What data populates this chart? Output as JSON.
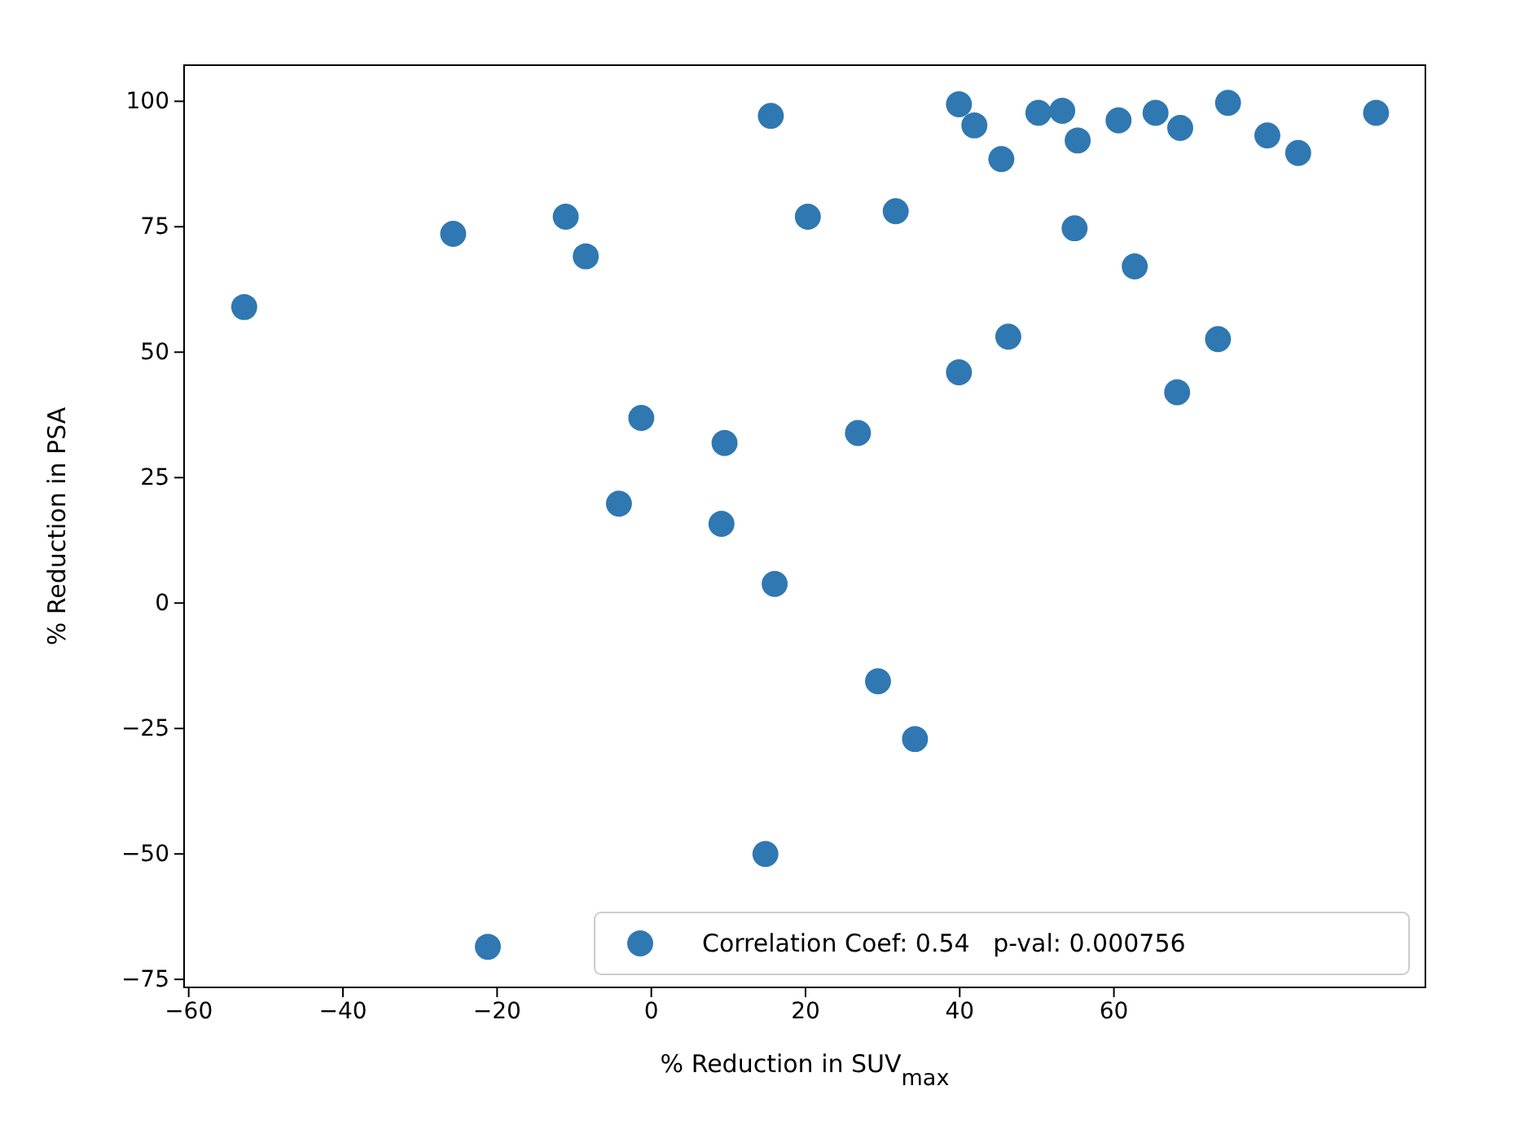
{
  "chart_data": {
    "type": "scatter",
    "xlabel": "% Reduction in SUV$_{max}$",
    "ylabel": "% Reduction in PSA",
    "xlim": [
      -60.6,
      100.4
    ],
    "ylim": [
      -76.6,
      107.2
    ],
    "xticks": [
      -60,
      -40,
      -20,
      0,
      20,
      40,
      60
    ],
    "yticks": [
      -75,
      -50,
      -25,
      0,
      25,
      50,
      75,
      100
    ],
    "grid": false,
    "legend": "bottom right",
    "marker": "circle",
    "series": [
      {
        "name": "Correlation Coef: 0.54   p-val: 0.000756",
        "color": "#2f78b2",
        "x": [
          39.9,
          41.9,
          45.4,
          50.2,
          53.3,
          55.3,
          60.6,
          65.4,
          68.6,
          74.8,
          79.9,
          83.9,
          94.0,
          54.9,
          62.7,
          46.3,
          39.9,
          73.5,
          68.2,
          -52.8,
          -25.7,
          -11.1,
          -8.5,
          15.5,
          20.3,
          31.7,
          -1.3,
          9.5,
          26.8,
          -4.2,
          9.1,
          16.0,
          29.4,
          34.2,
          14.8,
          -21.2
        ],
        "values": [
          99.4,
          95.2,
          88.5,
          97.7,
          98.1,
          92.2,
          96.2,
          97.7,
          94.7,
          99.7,
          93.2,
          89.7,
          97.7,
          74.7,
          67.1,
          53.1,
          46.0,
          52.6,
          42.0,
          59.0,
          73.6,
          77.0,
          69.1,
          97.1,
          77.0,
          78.1,
          36.9,
          31.9,
          33.9,
          19.8,
          15.8,
          3.8,
          -15.6,
          -27.1,
          -50.0,
          -68.5
        ]
      }
    ]
  }
}
